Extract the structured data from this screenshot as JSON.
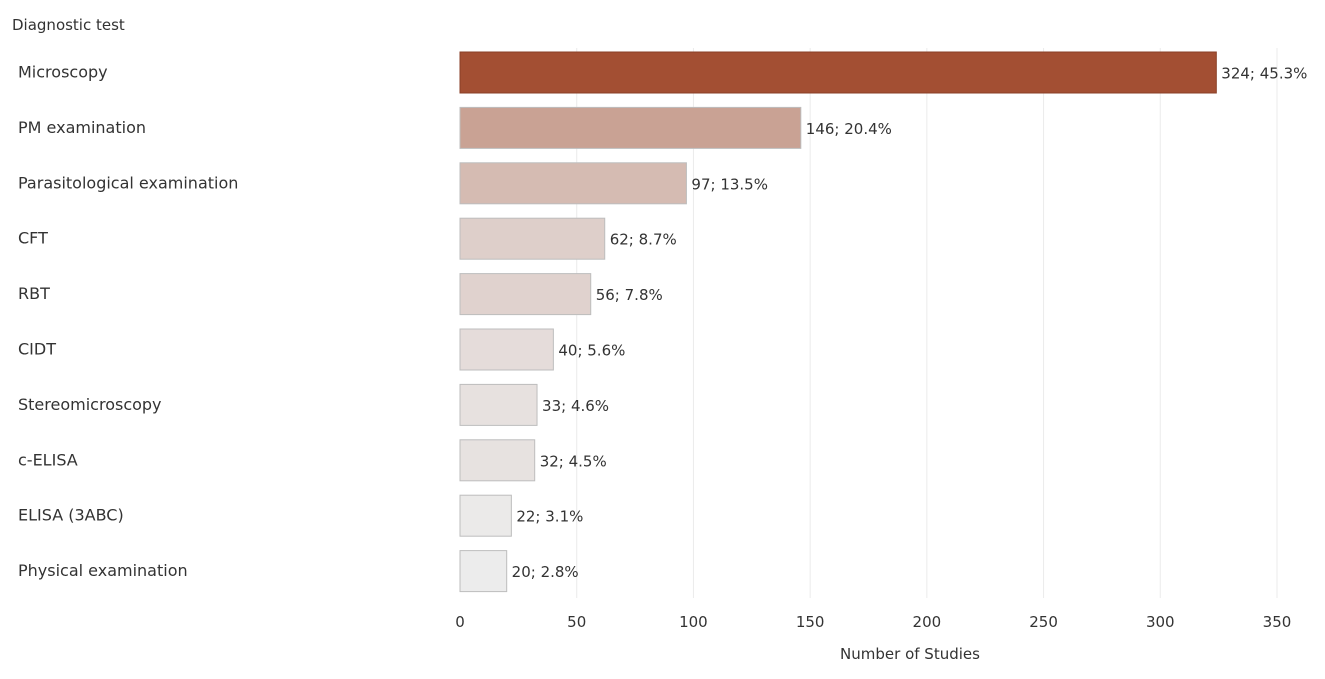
{
  "chart_data": {
    "type": "bar",
    "orientation": "horizontal",
    "ylabel": "Diagnostic test",
    "xlabel": "Number of Studies",
    "xlim": [
      0,
      350
    ],
    "xticks": [
      0,
      50,
      100,
      150,
      200,
      250,
      300,
      350
    ],
    "grid": "vertical",
    "categories": [
      "Microscopy",
      "PM examination",
      "Parasitological examination",
      "CFT",
      "RBT",
      "CIDT",
      "Stereomicroscopy",
      "c-ELISA",
      "ELISA (3ABC)",
      "Physical examination"
    ],
    "values": [
      324,
      146,
      97,
      62,
      56,
      40,
      33,
      32,
      22,
      20
    ],
    "data_labels": [
      "324; 45.3%",
      "146; 20.4%",
      "97; 13.5%",
      "62; 8.7%",
      "56; 7.8%",
      "40; 5.6%",
      "33; 4.6%",
      "32; 4.5%",
      "22; 3.1%",
      "20; 2.8%"
    ],
    "colors": {
      "max": "#a34f33",
      "min": "#ececec",
      "stroke_dark": "#8a3f27",
      "stroke_light": "#bdbdbd",
      "grid": "#ebebeb",
      "text": "#333333"
    }
  }
}
